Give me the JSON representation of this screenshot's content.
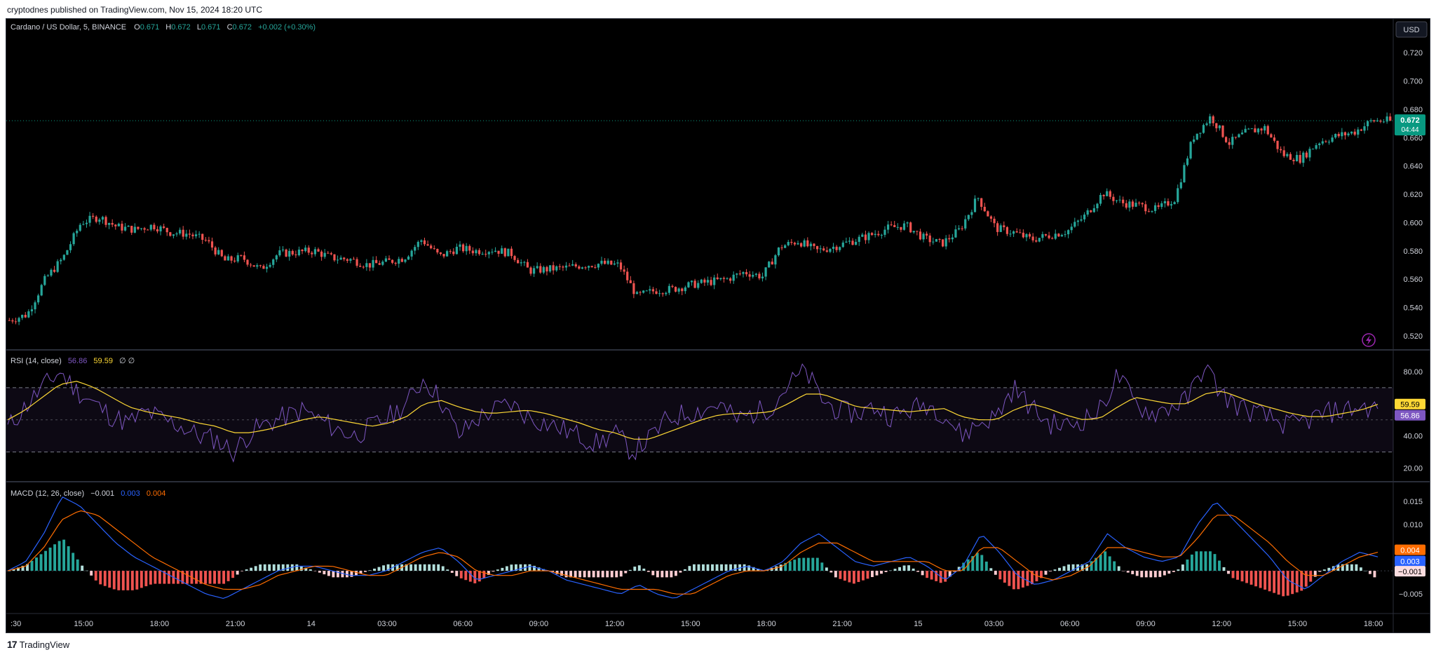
{
  "publication": "cryptodnes published on TradingView.com, Nov 15, 2024 18:20 UTC",
  "brand": "TradingView",
  "colors": {
    "up": "#26a69a",
    "down": "#ef5350",
    "rsi": "#7e57c2",
    "rsi_ma": "#fdd835",
    "macd": "#2962ff",
    "signal": "#ff6d00",
    "price_label": "#089981"
  },
  "main": {
    "symbol": "Cardano / US Dollar, 5, BINANCE",
    "o_label": "O",
    "o": "0.671",
    "h_label": "H",
    "h": "0.672",
    "l_label": "L",
    "l": "0.671",
    "c_label": "C",
    "c": "0.672",
    "change": "+0.002 (+0.30%)",
    "currency_button": "USD",
    "last_price": "0.672",
    "countdown": "04:44",
    "y_ticks": [
      "0.720",
      "0.700",
      "0.680",
      "0.660",
      "0.640",
      "0.620",
      "0.600",
      "0.580",
      "0.560",
      "0.540",
      "0.520"
    ]
  },
  "rsi": {
    "title": "RSI (14, close)",
    "value": "56.86",
    "ma_value": "59.59",
    "extra": "∅ ∅",
    "y_ticks": [
      "80.00",
      "60.00",
      "40.00",
      "20.00"
    ],
    "upper_band": 70,
    "mid_band": 50,
    "lower_band": 30
  },
  "macd": {
    "title": "MACD (12, 26, close)",
    "hist": "−0.001",
    "macd": "0.003",
    "signal": "0.004",
    "y_ticks": [
      "0.015",
      "0.010",
      "0.005",
      "−0.005"
    ]
  },
  "x_ticks": [
    ":30",
    "15:00",
    "18:00",
    "21:00",
    "14",
    "03:00",
    "06:00",
    "09:00",
    "12:00",
    "15:00",
    "18:00",
    "21:00",
    "15",
    "03:00",
    "06:00",
    "09:00",
    "12:00",
    "15:00",
    "18:00"
  ],
  "chart_data": [
    {
      "type": "candlestick",
      "title": "Cardano / US Dollar, 5, BINANCE",
      "ylim": [
        0.515,
        0.73
      ],
      "x": [
        ":30",
        "15:00",
        "18:00",
        "21:00",
        "14",
        "03:00",
        "06:00",
        "09:00",
        "12:00",
        "15:00",
        "18:00",
        "21:00",
        "15",
        "03:00",
        "06:00",
        "09:00",
        "12:00",
        "15:00",
        "18:00"
      ],
      "close_path": [
        0.531,
        0.535,
        0.56,
        0.575,
        0.6,
        0.604,
        0.597,
        0.595,
        0.598,
        0.593,
        0.592,
        0.587,
        0.573,
        0.575,
        0.567,
        0.578,
        0.579,
        0.58,
        0.575,
        0.574,
        0.57,
        0.572,
        0.575,
        0.588,
        0.576,
        0.582,
        0.58,
        0.581,
        0.578,
        0.566,
        0.567,
        0.568,
        0.57,
        0.571,
        0.57,
        0.548,
        0.552,
        0.553,
        0.556,
        0.558,
        0.56,
        0.565,
        0.562,
        0.583,
        0.587,
        0.58,
        0.583,
        0.587,
        0.591,
        0.596,
        0.598,
        0.589,
        0.585,
        0.595,
        0.618,
        0.596,
        0.593,
        0.588,
        0.591,
        0.594,
        0.605,
        0.621,
        0.614,
        0.612,
        0.609,
        0.617,
        0.66,
        0.675,
        0.656,
        0.664,
        0.667,
        0.648,
        0.645,
        0.657,
        0.661,
        0.664,
        0.672,
        0.672
      ],
      "last": 0.672
    },
    {
      "type": "line",
      "title": "RSI (14, close)",
      "ylim": [
        15,
        90
      ],
      "bands": [
        70,
        50,
        30
      ],
      "series": [
        {
          "name": "RSI",
          "values": [
            45,
            58,
            70,
            80,
            68,
            60,
            52,
            48,
            55,
            50,
            46,
            40,
            38,
            30,
            42,
            48,
            52,
            56,
            50,
            44,
            40,
            46,
            52,
            60,
            76,
            62,
            40,
            50,
            56,
            60,
            52,
            48,
            44,
            40,
            35,
            42,
            30,
            38,
            50,
            54,
            56,
            60,
            50,
            54,
            58,
            72,
            80,
            62,
            55,
            54,
            58,
            52,
            56,
            60,
            54,
            40,
            48,
            52,
            70,
            58,
            48,
            46,
            50,
            56,
            78,
            60,
            54,
            58,
            62,
            84,
            66,
            58,
            54,
            50,
            46,
            50,
            54,
            56,
            58,
            56.86
          ]
        },
        {
          "name": "RSI MA",
          "values": [
            50,
            56,
            64,
            72,
            74,
            70,
            64,
            58,
            55,
            53,
            51,
            48,
            46,
            42,
            42,
            44,
            47,
            50,
            52,
            50,
            48,
            46,
            48,
            52,
            60,
            62,
            58,
            55,
            54,
            55,
            56,
            54,
            51,
            48,
            44,
            42,
            38,
            38,
            42,
            46,
            50,
            53,
            54,
            54,
            55,
            60,
            66,
            66,
            62,
            58,
            57,
            56,
            55,
            56,
            57,
            52,
            50,
            50,
            56,
            60,
            57,
            53,
            50,
            51,
            58,
            64,
            62,
            60,
            60,
            66,
            68,
            64,
            60,
            57,
            54,
            52,
            52,
            54,
            56,
            59.59
          ]
        }
      ]
    },
    {
      "type": "bar+line",
      "title": "MACD (12, 26, close)",
      "ylim": [
        -0.008,
        0.018
      ],
      "series": [
        {
          "name": "MACD",
          "values": [
            0.0,
            0.002,
            0.008,
            0.016,
            0.014,
            0.01,
            0.006,
            0.003,
            0.001,
            -0.001,
            -0.003,
            -0.005,
            -0.006,
            -0.004,
            -0.002,
            0.0,
            0.001,
            0.001,
            0.0,
            -0.001,
            -0.001,
            0.0,
            0.002,
            0.004,
            0.005,
            0.002,
            -0.002,
            -0.001,
            0.0,
            0.001,
            0.0,
            -0.002,
            -0.003,
            -0.004,
            -0.005,
            -0.003,
            -0.005,
            -0.006,
            -0.004,
            -0.002,
            0.0,
            0.001,
            0.0,
            0.002,
            0.006,
            0.008,
            0.005,
            0.002,
            0.001,
            0.002,
            0.003,
            0.001,
            -0.002,
            0.001,
            0.008,
            0.004,
            -0.001,
            -0.003,
            -0.002,
            0.0,
            0.002,
            0.008,
            0.005,
            0.003,
            0.002,
            0.003,
            0.01,
            0.015,
            0.011,
            0.007,
            0.003,
            -0.002,
            -0.004,
            -0.001,
            0.002,
            0.004,
            0.003
          ]
        },
        {
          "name": "Signal",
          "values": [
            0.0,
            0.001,
            0.005,
            0.011,
            0.013,
            0.012,
            0.009,
            0.006,
            0.003,
            0.001,
            -0.001,
            -0.003,
            -0.004,
            -0.004,
            -0.003,
            -0.001,
            0.0,
            0.001,
            0.001,
            0.0,
            -0.001,
            -0.001,
            0.001,
            0.003,
            0.004,
            0.003,
            0.0,
            -0.001,
            -0.001,
            0.0,
            0.0,
            -0.001,
            -0.002,
            -0.003,
            -0.004,
            -0.004,
            -0.004,
            -0.005,
            -0.005,
            -0.003,
            -0.001,
            0.0,
            0.0,
            0.001,
            0.004,
            0.006,
            0.006,
            0.004,
            0.002,
            0.002,
            0.002,
            0.002,
            0.0,
            0.0,
            0.005,
            0.005,
            0.002,
            -0.001,
            -0.002,
            -0.001,
            0.001,
            0.005,
            0.005,
            0.004,
            0.003,
            0.003,
            0.007,
            0.012,
            0.012,
            0.009,
            0.006,
            0.002,
            -0.001,
            -0.001,
            0.001,
            0.003,
            0.004
          ]
        }
      ]
    }
  ]
}
